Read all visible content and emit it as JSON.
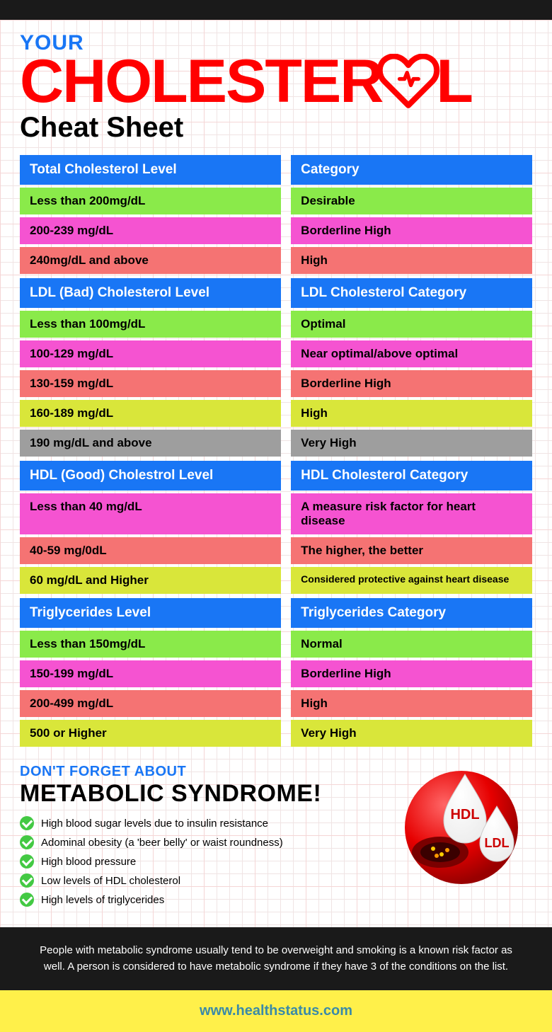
{
  "title": {
    "your": "YOUR",
    "cholesterol": "CHOLESTER",
    "cheat": "Cheat Sheet"
  },
  "colors": {
    "blue": "#1976f5",
    "green": "#8aea4a",
    "magenta": "#f553d1",
    "salmon": "#f57373",
    "yellowgreen": "#d9e63a",
    "gray": "#9e9e9e"
  },
  "sections": [
    {
      "headers": [
        "Total Cholesterol Level",
        "Category"
      ],
      "rows": [
        {
          "left": "Less than 200mg/dL",
          "right": "Desirable",
          "color": "green"
        },
        {
          "left": "200-239 mg/dL",
          "right": "Borderline High",
          "color": "magenta"
        },
        {
          "left": "240mg/dL and above",
          "right": "High",
          "color": "salmon"
        }
      ]
    },
    {
      "headers": [
        "LDL (Bad) Cholesterol Level",
        "LDL Cholesterol Category"
      ],
      "rows": [
        {
          "left": "Less than 100mg/dL",
          "right": "Optimal",
          "color": "green"
        },
        {
          "left": "100-129 mg/dL",
          "right": "Near optimal/above optimal",
          "color": "magenta"
        },
        {
          "left": "130-159 mg/dL",
          "right": "Borderline High",
          "color": "salmon"
        },
        {
          "left": "160-189 mg/dL",
          "right": "High",
          "color": "yellowgreen"
        },
        {
          "left": "190 mg/dL and above",
          "right": "Very High",
          "color": "gray"
        }
      ]
    },
    {
      "headers": [
        "HDL (Good) Cholestrol Level",
        "HDL Cholesterol Category"
      ],
      "rows": [
        {
          "left": "Less than 40 mg/dL",
          "right": "A measure risk factor for heart disease",
          "color": "magenta"
        },
        {
          "left": "40-59 mg/0dL",
          "right": "The higher, the better",
          "color": "salmon"
        },
        {
          "left": "60 mg/dL and Higher",
          "right": "Considered protective against heart disease",
          "color": "yellowgreen",
          "right_fs": "14px"
        }
      ]
    },
    {
      "headers": [
        "Triglycerides Level",
        "Triglycerides Category"
      ],
      "rows": [
        {
          "left": "Less than 150mg/dL",
          "right": "Normal",
          "color": "green"
        },
        {
          "left": "150-199 mg/dL",
          "right": "Borderline High",
          "color": "magenta"
        },
        {
          "left": "200-499 mg/dL",
          "right": "High",
          "color": "salmon"
        },
        {
          "left": "500 or Higher",
          "right": "Very High",
          "color": "yellowgreen"
        }
      ]
    }
  ],
  "metabolic": {
    "sub": "DON'T FORGET ABOUT",
    "title": "METABOLIC SYNDROME!",
    "items": [
      "High blood sugar levels due to insulin resistance",
      "Adominal obesity (a 'beer belly' or waist roundness)",
      "High blood pressure",
      "Low levels of HDL cholesterol",
      "High levels of triglycerides"
    ],
    "hdl_label": "HDL",
    "ldl_label": "LDL"
  },
  "footer": {
    "dark": "People with metabolic syndrome usually tend to be overweight and smoking is a known risk factor as well. A person is considered to have metabolic syndrome if they have 3 of the conditions on the list.",
    "url": "www.healthstatus.com"
  }
}
